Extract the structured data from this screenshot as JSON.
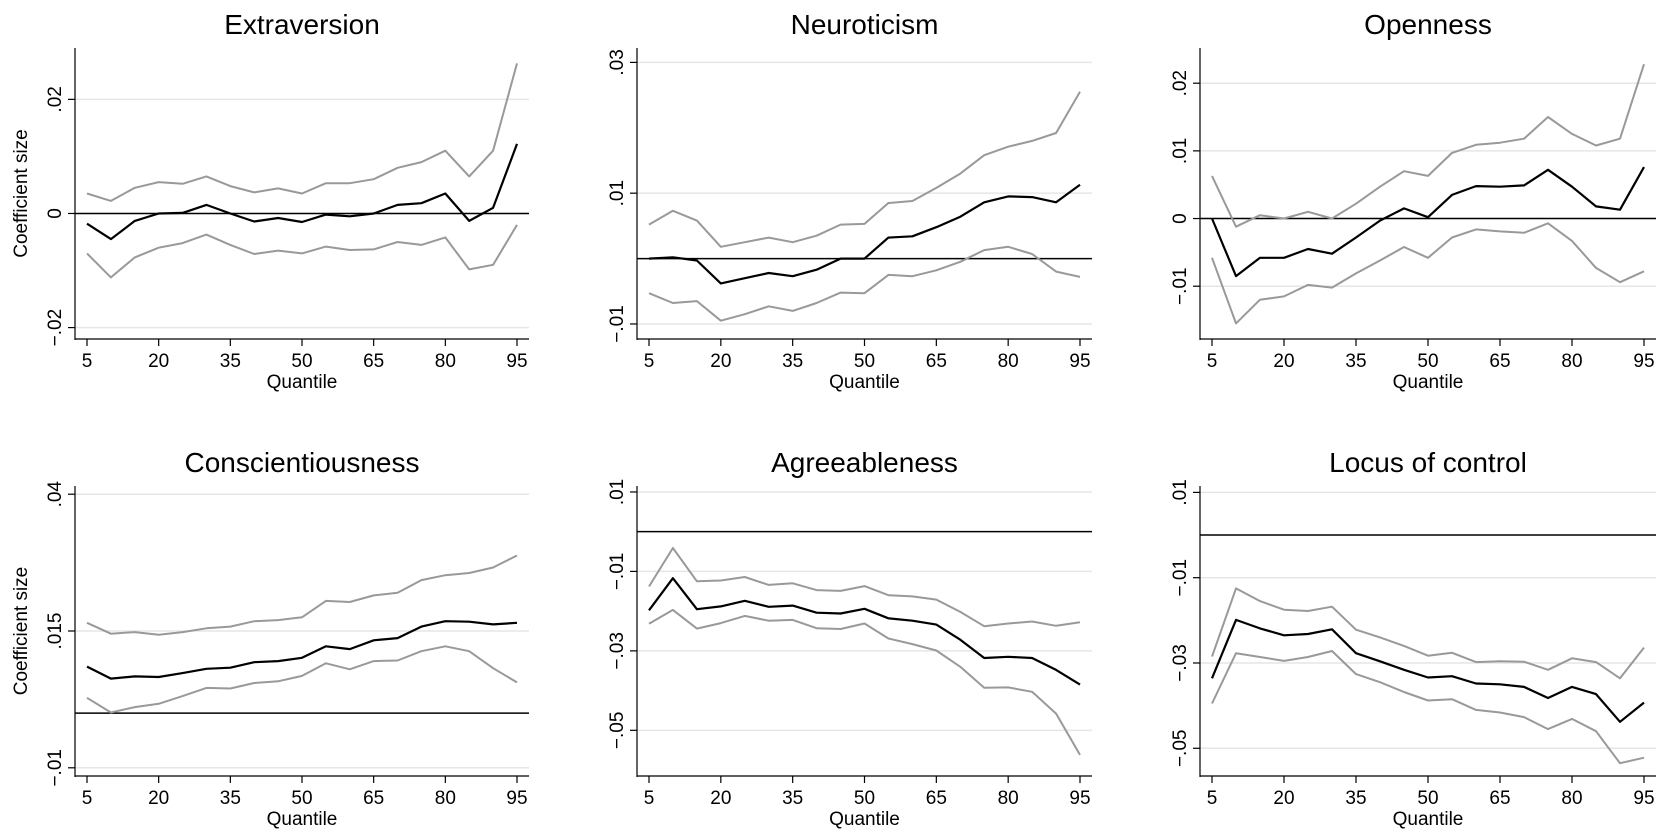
{
  "chart_data": [
    {
      "type": "line",
      "title": "Extraversion",
      "xlabel": "Quantile",
      "ylabel": "Coefficient size",
      "x": [
        5,
        10,
        15,
        20,
        25,
        30,
        35,
        40,
        45,
        50,
        55,
        60,
        65,
        70,
        75,
        80,
        85,
        90,
        95
      ],
      "xticks": [
        5,
        20,
        35,
        50,
        65,
        80,
        95
      ],
      "ylim": [
        -0.022,
        0.029
      ],
      "yticks": [
        -0.02,
        0,
        0.02
      ],
      "ytick_labels": [
        "−.02",
        "0",
        ".02"
      ],
      "zero_line": 0,
      "series": [
        {
          "role": "upper",
          "values": [
            0.0035,
            0.0022,
            0.0045,
            0.0055,
            0.0052,
            0.0065,
            0.0048,
            0.0037,
            0.0044,
            0.0035,
            0.0053,
            0.0053,
            0.006,
            0.008,
            0.009,
            0.011,
            0.0065,
            0.011,
            0.0263
          ]
        },
        {
          "role": "estimate",
          "values": [
            -0.0018,
            -0.0045,
            -0.0013,
            0.0,
            0.0001,
            0.0015,
            0.0,
            -0.0014,
            -0.0008,
            -0.0015,
            -0.0002,
            -0.0005,
            0.0,
            0.0015,
            0.0018,
            0.0035,
            -0.0013,
            0.001,
            0.0122
          ]
        },
        {
          "role": "lower",
          "values": [
            -0.007,
            -0.0112,
            -0.0077,
            -0.006,
            -0.0052,
            -0.0037,
            -0.0055,
            -0.0071,
            -0.0065,
            -0.007,
            -0.0058,
            -0.0064,
            -0.0063,
            -0.005,
            -0.0055,
            -0.0042,
            -0.0098,
            -0.009,
            -0.002
          ]
        }
      ]
    },
    {
      "type": "line",
      "title": "Neuroticism",
      "xlabel": "Quantile",
      "ylabel": "",
      "x": [
        5,
        10,
        15,
        20,
        25,
        30,
        35,
        40,
        45,
        50,
        55,
        60,
        65,
        70,
        75,
        80,
        85,
        90,
        95
      ],
      "xticks": [
        5,
        20,
        35,
        50,
        65,
        80,
        95
      ],
      "ylim": [
        -0.0123,
        0.0322
      ],
      "yticks": [
        -0.01,
        0.01,
        0.03
      ],
      "ytick_labels": [
        "−.01",
        ".01",
        ".03"
      ],
      "zero_line": 0,
      "series": [
        {
          "role": "upper",
          "values": [
            0.0052,
            0.0073,
            0.0058,
            0.0018,
            0.0025,
            0.0032,
            0.0025,
            0.0035,
            0.0052,
            0.0053,
            0.0085,
            0.0088,
            0.0108,
            0.013,
            0.0158,
            0.0171,
            0.018,
            0.0192,
            0.0255
          ]
        },
        {
          "role": "estimate",
          "values": [
            0.0,
            0.0002,
            -0.0003,
            -0.0038,
            -0.003,
            -0.0022,
            -0.0027,
            -0.0017,
            0.0,
            0.0,
            0.0032,
            0.0034,
            0.0048,
            0.0064,
            0.0086,
            0.0095,
            0.0094,
            0.0086,
            0.0113
          ]
        },
        {
          "role": "lower",
          "values": [
            -0.0053,
            -0.0068,
            -0.0065,
            -0.0095,
            -0.0085,
            -0.0073,
            -0.008,
            -0.0068,
            -0.0052,
            -0.0053,
            -0.0025,
            -0.0027,
            -0.0018,
            -0.0005,
            0.0013,
            0.0018,
            0.0007,
            -0.002,
            -0.0028
          ]
        }
      ]
    },
    {
      "type": "line",
      "title": "Openness",
      "xlabel": "Quantile",
      "ylabel": "",
      "x": [
        5,
        10,
        15,
        20,
        25,
        30,
        35,
        40,
        45,
        50,
        55,
        60,
        65,
        70,
        75,
        80,
        85,
        90,
        95
      ],
      "xticks": [
        5,
        20,
        35,
        50,
        65,
        80,
        95
      ],
      "ylim": [
        -0.0178,
        0.0252
      ],
      "yticks": [
        -0.01,
        0,
        0.01,
        0.02
      ],
      "ytick_labels": [
        "−.01",
        "0",
        ".01",
        ".02"
      ],
      "zero_line": 0,
      "series": [
        {
          "role": "upper",
          "values": [
            0.0063,
            -0.0012,
            0.0005,
            0.0,
            0.001,
            0.0,
            0.0022,
            0.0047,
            0.007,
            0.0063,
            0.0097,
            0.0109,
            0.0112,
            0.0118,
            0.015,
            0.0125,
            0.0108,
            0.0118,
            0.0228
          ]
        },
        {
          "role": "estimate",
          "values": [
            0.0,
            -0.0085,
            -0.0058,
            -0.0058,
            -0.0045,
            -0.0052,
            -0.0028,
            -0.0003,
            0.0015,
            0.0002,
            0.0035,
            0.0048,
            0.0047,
            0.0049,
            0.0072,
            0.0047,
            0.0018,
            0.0013,
            0.0076
          ]
        },
        {
          "role": "lower",
          "values": [
            -0.0058,
            -0.0155,
            -0.012,
            -0.0115,
            -0.0098,
            -0.0102,
            -0.0081,
            -0.0062,
            -0.0042,
            -0.0058,
            -0.0028,
            -0.0016,
            -0.0019,
            -0.0021,
            -0.0007,
            -0.0033,
            -0.0073,
            -0.0094,
            -0.0078
          ]
        }
      ]
    },
    {
      "type": "line",
      "title": "Conscientiousness",
      "xlabel": "Quantile",
      "ylabel": "Coefficient size",
      "x": [
        5,
        10,
        15,
        20,
        25,
        30,
        35,
        40,
        45,
        50,
        55,
        60,
        65,
        70,
        75,
        80,
        85,
        90,
        95
      ],
      "xticks": [
        5,
        20,
        35,
        50,
        65,
        80,
        95
      ],
      "ylim": [
        -0.0115,
        0.0415
      ],
      "yticks": [
        -0.01,
        0.015,
        0.04
      ],
      "ytick_labels": [
        "−.01",
        ".015",
        ".04"
      ],
      "zero_line": 0,
      "series": [
        {
          "role": "upper",
          "values": [
            0.0165,
            0.0145,
            0.0148,
            0.0143,
            0.0148,
            0.0155,
            0.0158,
            0.0168,
            0.017,
            0.0175,
            0.0205,
            0.0203,
            0.0215,
            0.022,
            0.0243,
            0.0252,
            0.0256,
            0.0266,
            0.0288
          ]
        },
        {
          "role": "estimate",
          "values": [
            0.0085,
            0.0063,
            0.0067,
            0.0066,
            0.0073,
            0.0081,
            0.0083,
            0.0093,
            0.0095,
            0.0101,
            0.0122,
            0.0117,
            0.0133,
            0.0137,
            0.0158,
            0.0168,
            0.0167,
            0.0162,
            0.0165
          ]
        },
        {
          "role": "lower",
          "values": [
            0.0028,
            0.0001,
            0.0011,
            0.0017,
            0.0031,
            0.0046,
            0.0045,
            0.0055,
            0.0058,
            0.0068,
            0.0091,
            0.008,
            0.0095,
            0.0096,
            0.0113,
            0.0122,
            0.0113,
            0.0082,
            0.0056
          ]
        }
      ]
    },
    {
      "type": "line",
      "title": "Agreeableness",
      "xlabel": "Quantile",
      "ylabel": "",
      "x": [
        5,
        10,
        15,
        20,
        25,
        30,
        35,
        40,
        45,
        50,
        55,
        60,
        65,
        70,
        75,
        80,
        85,
        90,
        95
      ],
      "xticks": [
        5,
        20,
        35,
        50,
        65,
        80,
        95
      ],
      "ylim": [
        -0.0615,
        0.0115
      ],
      "yticks": [
        -0.05,
        -0.03,
        -0.01,
        0.01
      ],
      "ytick_labels": [
        "−.05",
        "−.03",
        "−.01",
        ".01"
      ],
      "zero_line": 0,
      "series": [
        {
          "role": "upper",
          "values": [
            -0.0138,
            -0.0041,
            -0.0125,
            -0.0123,
            -0.0114,
            -0.0134,
            -0.013,
            -0.0147,
            -0.0149,
            -0.0137,
            -0.016,
            -0.0163,
            -0.0171,
            -0.0202,
            -0.0238,
            -0.0231,
            -0.0226,
            -0.0237,
            -0.0228
          ]
        },
        {
          "role": "estimate",
          "values": [
            -0.0198,
            -0.0117,
            -0.0195,
            -0.0188,
            -0.0174,
            -0.0189,
            -0.0186,
            -0.0204,
            -0.0206,
            -0.0194,
            -0.0218,
            -0.0224,
            -0.0234,
            -0.0272,
            -0.0318,
            -0.0315,
            -0.0318,
            -0.0348,
            -0.0385
          ]
        },
        {
          "role": "lower",
          "values": [
            -0.0232,
            -0.0197,
            -0.0244,
            -0.023,
            -0.0212,
            -0.0224,
            -0.0222,
            -0.0243,
            -0.0245,
            -0.0231,
            -0.0269,
            -0.0283,
            -0.0299,
            -0.034,
            -0.0393,
            -0.0392,
            -0.0403,
            -0.0458,
            -0.0562
          ]
        }
      ]
    },
    {
      "type": "line",
      "title": "Locus of control",
      "xlabel": "Quantile",
      "ylabel": "",
      "x": [
        5,
        10,
        15,
        20,
        25,
        30,
        35,
        40,
        45,
        50,
        55,
        60,
        65,
        70,
        75,
        80,
        85,
        90,
        95
      ],
      "xticks": [
        5,
        20,
        35,
        50,
        65,
        80,
        95
      ],
      "ylim": [
        -0.0565,
        0.0115
      ],
      "yticks": [
        -0.05,
        -0.03,
        -0.01,
        0.01
      ],
      "ytick_labels": [
        "−.05",
        "−.03",
        "−.01",
        ".01"
      ],
      "zero_line": 0,
      "series": [
        {
          "role": "upper",
          "values": [
            -0.0285,
            -0.0125,
            -0.0155,
            -0.0175,
            -0.0178,
            -0.0168,
            -0.0222,
            -0.024,
            -0.026,
            -0.0283,
            -0.0276,
            -0.0298,
            -0.0296,
            -0.0297,
            -0.0316,
            -0.0289,
            -0.0298,
            -0.0336,
            -0.0264
          ]
        },
        {
          "role": "estimate",
          "values": [
            -0.0336,
            -0.0199,
            -0.0219,
            -0.0235,
            -0.0232,
            -0.0221,
            -0.0277,
            -0.0296,
            -0.0316,
            -0.0334,
            -0.0331,
            -0.0348,
            -0.035,
            -0.0356,
            -0.0382,
            -0.0356,
            -0.0373,
            -0.0438,
            -0.0393
          ]
        },
        {
          "role": "lower",
          "values": [
            -0.0395,
            -0.0277,
            -0.0286,
            -0.0295,
            -0.0286,
            -0.0272,
            -0.0326,
            -0.0345,
            -0.0368,
            -0.0388,
            -0.0385,
            -0.041,
            -0.0416,
            -0.0427,
            -0.0455,
            -0.0431,
            -0.046,
            -0.0535,
            -0.0522
          ]
        }
      ]
    }
  ],
  "colors": {
    "estimate": "#000000",
    "ci": "#999999",
    "grid": "#e6e6e6",
    "axis": "#000000"
  }
}
